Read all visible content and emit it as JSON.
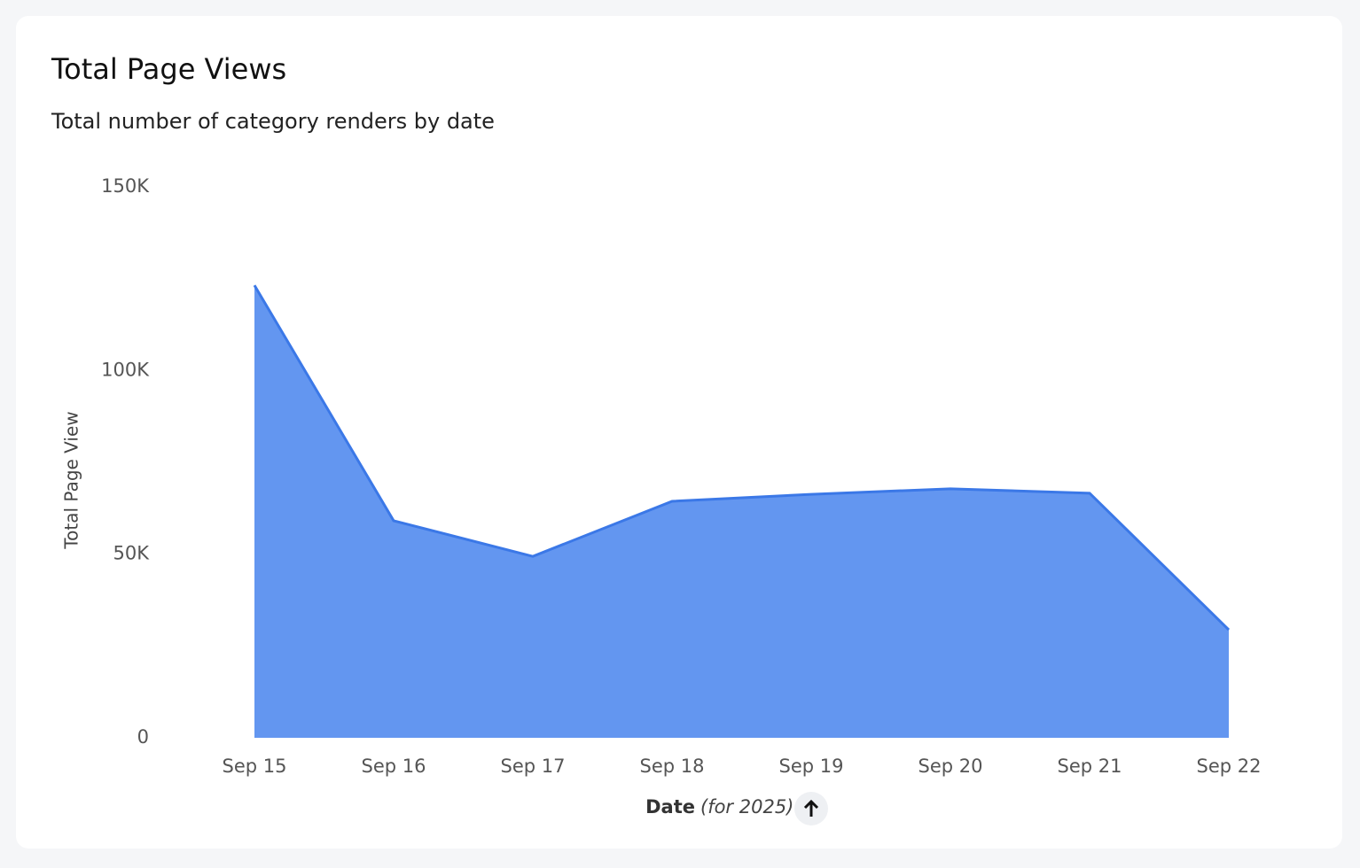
{
  "chart_data": {
    "type": "area",
    "title": "Total Page Views",
    "subtitle": "Total number of category renders by date",
    "ylabel": "Total Page View",
    "xlabel": "Date",
    "xlabel_note": "(for 2025)",
    "categories": [
      "Sep 15",
      "Sep 16",
      "Sep 17",
      "Sep 18",
      "Sep 19",
      "Sep 20",
      "Sep 21",
      "Sep 22"
    ],
    "values": [
      123200,
      59100,
      49400,
      64400,
      66300,
      67800,
      66600,
      29400
    ],
    "color": "#6396f0",
    "line_color": "#3b78e7",
    "ylim": [
      0,
      150000
    ],
    "yticks": [
      0,
      {
        "value": 50000,
        "label": "50K"
      },
      {
        "value": 100000,
        "label": "100K"
      },
      {
        "value": 150000,
        "label": "150K"
      }
    ],
    "grid": false
  }
}
